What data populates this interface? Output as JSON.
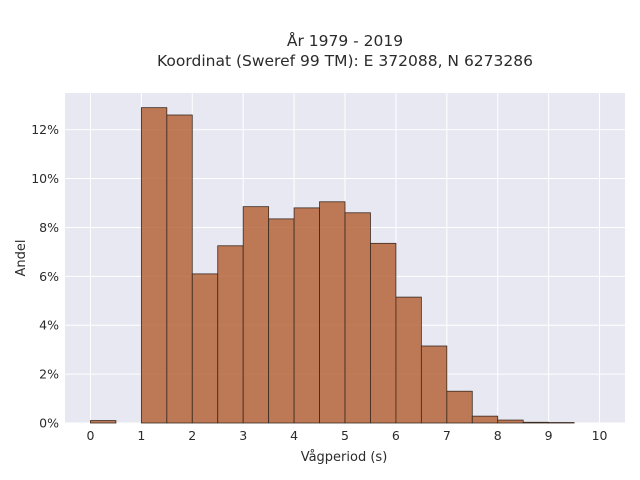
{
  "chart_data": {
    "type": "bar",
    "title_lines": [
      "År 1979 - 2019",
      "Koordinat (Sweref 99 TM): E 372088, N 6273286"
    ],
    "xlabel": "Vågperiod (s)",
    "ylabel": "Andel",
    "xlim": [
      -0.5,
      10.5
    ],
    "ylim": [
      0,
      13.5
    ],
    "x_ticks": [
      0,
      1,
      2,
      3,
      4,
      5,
      6,
      7,
      8,
      9,
      10
    ],
    "y_ticks": [
      0,
      2,
      4,
      6,
      8,
      10,
      12
    ],
    "y_tick_suffix": "%",
    "bin_width": 0.5,
    "bins": [
      {
        "start": 0.0,
        "value": 0.1
      },
      {
        "start": 0.5,
        "value": 0.0
      },
      {
        "start": 1.0,
        "value": 12.9
      },
      {
        "start": 1.5,
        "value": 12.6
      },
      {
        "start": 2.0,
        "value": 6.1
      },
      {
        "start": 2.5,
        "value": 7.25
      },
      {
        "start": 3.0,
        "value": 8.85
      },
      {
        "start": 3.5,
        "value": 8.35
      },
      {
        "start": 4.0,
        "value": 8.8
      },
      {
        "start": 4.5,
        "value": 9.05
      },
      {
        "start": 5.0,
        "value": 8.6
      },
      {
        "start": 5.5,
        "value": 7.35
      },
      {
        "start": 6.0,
        "value": 5.15
      },
      {
        "start": 6.5,
        "value": 3.15
      },
      {
        "start": 7.0,
        "value": 1.3
      },
      {
        "start": 7.5,
        "value": 0.28
      },
      {
        "start": 8.0,
        "value": 0.12
      },
      {
        "start": 8.5,
        "value": 0.03
      },
      {
        "start": 9.0,
        "value": 0.02
      },
      {
        "start": 9.5,
        "value": 0.0
      }
    ],
    "grid": true,
    "colors": {
      "bar": "#b5653a",
      "plot_bg": "#e8e8f2",
      "grid": "#ffffff"
    }
  }
}
